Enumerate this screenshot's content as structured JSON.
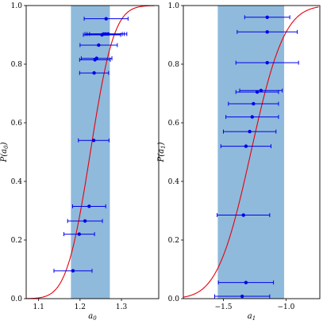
{
  "chart_data": [
    {
      "type": "scatter",
      "xlabel_base": "a",
      "xlabel_sub": "0",
      "ylabel_base": "P(a",
      "ylabel_sub": "0",
      "ylabel_close": ")",
      "xlim": [
        1.07,
        1.39
      ],
      "ylim": [
        0.0,
        1.0
      ],
      "xticks": [
        1.1,
        1.2,
        1.3
      ],
      "xtick_labels": [
        "1.1",
        "1.2",
        "1.3"
      ],
      "yticks": [
        0.0,
        0.2,
        0.4,
        0.6,
        0.8,
        1.0
      ],
      "ytick_labels": [
        "0.0",
        "0.2",
        "0.4",
        "0.6",
        "0.8",
        "1.0"
      ],
      "band": [
        1.178,
        1.272
      ],
      "band_color": "#8fbadb",
      "curve_color": "#e8000b",
      "point_color": "#0000ee",
      "cdf": {
        "mu": 1.225,
        "sigma": 0.045,
        "xmin": 1.07,
        "xmax": 1.38
      },
      "points": [
        {
          "x": 1.263,
          "y": 0.955,
          "xerr": 0.053
        },
        {
          "x": 1.257,
          "y": 0.903,
          "xerr": 0.045
        },
        {
          "x": 1.262,
          "y": 0.903,
          "xerr": 0.045
        },
        {
          "x": 1.268,
          "y": 0.903,
          "xerr": 0.045
        },
        {
          "x": 1.253,
          "y": 0.9,
          "xerr": 0.045
        },
        {
          "x": 1.245,
          "y": 0.865,
          "xerr": 0.045
        },
        {
          "x": 1.24,
          "y": 0.82,
          "xerr": 0.037
        },
        {
          "x": 1.236,
          "y": 0.815,
          "xerr": 0.037
        },
        {
          "x": 1.234,
          "y": 0.77,
          "xerr": 0.035
        },
        {
          "x": 1.233,
          "y": 0.54,
          "xerr": 0.037
        },
        {
          "x": 1.222,
          "y": 0.315,
          "xerr": 0.04
        },
        {
          "x": 1.212,
          "y": 0.265,
          "xerr": 0.042
        },
        {
          "x": 1.198,
          "y": 0.22,
          "xerr": 0.037
        },
        {
          "x": 1.183,
          "y": 0.095,
          "xerr": 0.046
        }
      ]
    },
    {
      "type": "scatter",
      "xlabel_base": "a",
      "xlabel_sub": "1",
      "ylabel_base": "P(a",
      "ylabel_sub": "1",
      "ylabel_close": ")",
      "xlim": [
        -1.82,
        -0.73
      ],
      "ylim": [
        0.0,
        1.0
      ],
      "xticks": [
        -1.5,
        -1.0
      ],
      "xtick_labels": [
        "−1.5",
        "−1.0"
      ],
      "yticks": [
        0.0,
        0.2,
        0.4,
        0.6,
        0.8,
        1.0
      ],
      "ytick_labels": [
        "0.0",
        "0.2",
        "0.4",
        "0.6",
        "0.8",
        "1.0"
      ],
      "band": [
        -1.545,
        -1.015
      ],
      "band_color": "#8fbadb",
      "curve_color": "#e8000b",
      "point_color": "#0000ee",
      "cdf": {
        "mu": -1.28,
        "sigma": 0.21,
        "xmin": -1.82,
        "xmax": -0.74
      },
      "points": [
        {
          "x": -1.15,
          "y": 0.96,
          "xerr": 0.18
        },
        {
          "x": -1.15,
          "y": 0.91,
          "xerr": 0.24
        },
        {
          "x": -1.15,
          "y": 0.805,
          "xerr": 0.25
        },
        {
          "x": -1.2,
          "y": 0.71,
          "xerr": 0.17
        },
        {
          "x": -1.23,
          "y": 0.705,
          "xerr": 0.17
        },
        {
          "x": -1.26,
          "y": 0.665,
          "xerr": 0.2
        },
        {
          "x": -1.27,
          "y": 0.62,
          "xerr": 0.21
        },
        {
          "x": -1.29,
          "y": 0.57,
          "xerr": 0.21
        },
        {
          "x": -1.32,
          "y": 0.52,
          "xerr": 0.2
        },
        {
          "x": -1.34,
          "y": 0.285,
          "xerr": 0.21
        },
        {
          "x": -1.32,
          "y": 0.055,
          "xerr": 0.22
        },
        {
          "x": -1.35,
          "y": 0.008,
          "xerr": 0.22
        }
      ]
    }
  ]
}
